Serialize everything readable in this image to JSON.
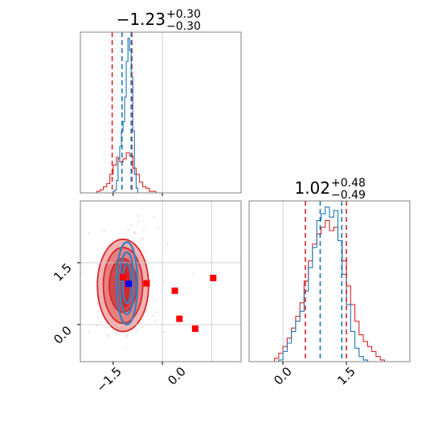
{
  "chart_data": [
    {
      "type": "histogram",
      "panel": "marginal-x",
      "title_value": "−1.23",
      "title_plus": "+0.30",
      "title_minus": "−0.30",
      "xlim": [
        -2.5,
        2.4
      ],
      "grid": true,
      "grid_x": [
        0.0
      ],
      "red_quantiles": [
        -1.53,
        -0.93
      ],
      "blue_quantiles": [
        -1.23,
        -0.95
      ],
      "series": [
        {
          "color": "#d62728",
          "bins": [
            -2.0,
            -1.9,
            -1.8,
            -1.7,
            -1.6,
            -1.5,
            -1.4,
            -1.3,
            -1.2,
            -1.1,
            -1.0,
            -0.9,
            -0.8,
            -0.7,
            -0.6,
            -0.5,
            -0.4,
            -0.3
          ],
          "counts": [
            1,
            2,
            4,
            6,
            12,
            18,
            23,
            20,
            22,
            26,
            24,
            16,
            12,
            7,
            4,
            3,
            1,
            1
          ]
        },
        {
          "color": "#1f77b4",
          "bins": [
            -1.5,
            -1.45,
            -1.4,
            -1.35,
            -1.3,
            -1.25,
            -1.2,
            -1.15,
            -1.1,
            -1.05,
            -1.0,
            -0.95,
            -0.9,
            -0.85,
            -0.8
          ],
          "counts": [
            1,
            2,
            8,
            22,
            30,
            40,
            46,
            62,
            85,
            100,
            92,
            75,
            40,
            12,
            3
          ]
        }
      ]
    },
    {
      "type": "histogram",
      "panel": "marginal-y",
      "title_value": "1.02",
      "title_plus": "+0.48",
      "title_minus": "−0.49",
      "xlim": [
        -0.8,
        3.0
      ],
      "xticks": [
        "0.0",
        "1.5"
      ],
      "grid": true,
      "grid_x": [
        0.0
      ],
      "red_quantiles": [
        0.53,
        1.5
      ],
      "blue_quantiles": [
        0.88,
        1.39
      ],
      "series": [
        {
          "color": "#d62728",
          "bins": [
            -0.2,
            -0.1,
            0.0,
            0.1,
            0.2,
            0.3,
            0.4,
            0.5,
            0.6,
            0.7,
            0.8,
            0.9,
            1.0,
            1.1,
            1.2,
            1.3,
            1.4,
            1.5,
            1.6,
            1.7,
            1.8,
            1.9,
            2.0,
            2.1,
            2.2,
            2.3
          ],
          "counts": [
            2,
            5,
            9,
            14,
            20,
            27,
            35,
            48,
            60,
            70,
            76,
            80,
            84,
            78,
            80,
            72,
            60,
            45,
            34,
            24,
            16,
            12,
            9,
            6,
            3,
            1
          ]
        },
        {
          "color": "#1f77b4",
          "bins": [
            -0.1,
            0.0,
            0.1,
            0.2,
            0.3,
            0.4,
            0.5,
            0.6,
            0.7,
            0.8,
            0.9,
            1.0,
            1.1,
            1.2,
            1.3,
            1.4,
            1.5,
            1.6,
            1.7,
            1.8,
            1.9
          ],
          "counts": [
            1,
            6,
            11,
            18,
            24,
            30,
            42,
            56,
            68,
            84,
            88,
            92,
            86,
            90,
            72,
            52,
            34,
            18,
            8,
            3,
            1
          ]
        }
      ]
    },
    {
      "type": "scatter",
      "panel": "joint",
      "xlim": [
        -2.5,
        2.4
      ],
      "ylim": [
        -0.9,
        3.0
      ],
      "xticks": [
        "−1.5",
        "0.0"
      ],
      "yticks": [
        "0.0",
        "1.5"
      ],
      "grid": true,
      "grid_x": [
        0.0,
        1.5
      ],
      "grid_y": [
        0.0,
        1.5
      ],
      "red_contours": [
        {
          "cx": -1.2,
          "cy": 0.95,
          "rx": 0.78,
          "ry": 1.12,
          "fill": "#f2b2b2"
        },
        {
          "cx": -1.2,
          "cy": 0.95,
          "rx": 0.6,
          "ry": 0.92,
          "fill": "#e58080"
        },
        {
          "cx": -1.2,
          "cy": 0.95,
          "rx": 0.42,
          "ry": 0.65,
          "fill": "#d24646"
        },
        {
          "cx": -1.15,
          "cy": 0.95,
          "rx": 0.18,
          "ry": 0.55,
          "fill": "#d62728"
        }
      ],
      "blue_contours": [
        {
          "cx": -1.08,
          "cy": 1.0,
          "rx": 0.32,
          "ry": 1.0
        },
        {
          "cx": -1.08,
          "cy": 1.0,
          "rx": 0.22,
          "ry": 0.75
        },
        {
          "cx": -1.08,
          "cy": 1.0,
          "rx": 0.13,
          "ry": 0.48
        }
      ],
      "red_squares": [
        [
          -1.2,
          1.15
        ],
        [
          -0.48,
          1.0
        ],
        [
          0.38,
          0.82
        ],
        [
          0.52,
          0.14
        ],
        [
          1.0,
          -0.1
        ],
        [
          1.55,
          1.13
        ]
      ],
      "blue_squares": [
        [
          -1.03,
          0.99
        ]
      ]
    }
  ]
}
